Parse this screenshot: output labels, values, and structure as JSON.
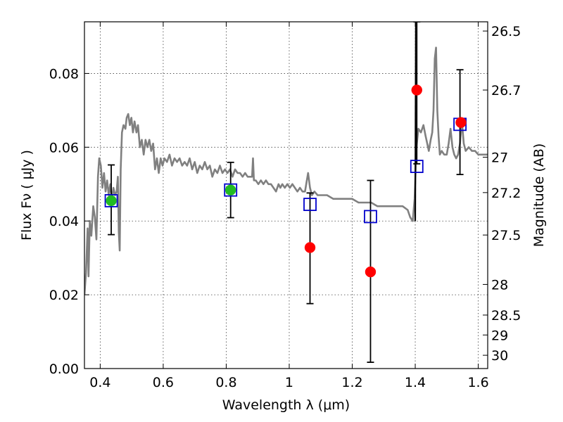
{
  "chart_data": {
    "type": "scatter",
    "xlabel": "Wavelength  λ (μm)",
    "ylabel": "Flux  Fν  ( μJy )",
    "y2label": "Magnitude (AB)",
    "xlim": [
      0.35,
      1.63
    ],
    "ylim": [
      0.0,
      0.094
    ],
    "grid": true,
    "x_ticks": [
      0.4,
      0.6,
      0.8,
      1.0,
      1.2,
      1.4,
      1.6
    ],
    "x_tick_labels": [
      "0.4",
      "0.6",
      "0.8",
      "1",
      "1.2",
      "1.4",
      "1.6"
    ],
    "y_ticks": [
      0.0,
      0.02,
      0.04,
      0.06,
      0.08
    ],
    "y_tick_labels": [
      "0.00",
      "0.02",
      "0.04",
      "0.06",
      "0.08"
    ],
    "y2_ticks": [
      {
        "label": "26.5",
        "flux": 0.0915
      },
      {
        "label": "26.7",
        "flux": 0.0755
      },
      {
        "label": "27",
        "flux": 0.0573
      },
      {
        "label": "27.2",
        "flux": 0.0477
      },
      {
        "label": "27.5",
        "flux": 0.0362
      },
      {
        "label": "28",
        "flux": 0.0228
      },
      {
        "label": "28.5",
        "flux": 0.0145
      },
      {
        "label": "29",
        "flux": 0.0091
      },
      {
        "label": "30",
        "flux": 0.0036
      }
    ],
    "series": [
      {
        "kind": "line",
        "color": "#808080",
        "points": [
          [
            0.35,
            0.02
          ],
          [
            0.355,
            0.026
          ],
          [
            0.36,
            0.038
          ],
          [
            0.363,
            0.025
          ],
          [
            0.367,
            0.04
          ],
          [
            0.372,
            0.036
          ],
          [
            0.378,
            0.044
          ],
          [
            0.383,
            0.041
          ],
          [
            0.388,
            0.035
          ],
          [
            0.393,
            0.052
          ],
          [
            0.397,
            0.057
          ],
          [
            0.402,
            0.055
          ],
          [
            0.407,
            0.049
          ],
          [
            0.412,
            0.053
          ],
          [
            0.417,
            0.048
          ],
          [
            0.422,
            0.051
          ],
          [
            0.427,
            0.047
          ],
          [
            0.432,
            0.05
          ],
          [
            0.437,
            0.046
          ],
          [
            0.442,
            0.049
          ],
          [
            0.447,
            0.047
          ],
          [
            0.452,
            0.048
          ],
          [
            0.456,
            0.052
          ],
          [
            0.459,
            0.037
          ],
          [
            0.462,
            0.032
          ],
          [
            0.465,
            0.054
          ],
          [
            0.469,
            0.064
          ],
          [
            0.474,
            0.066
          ],
          [
            0.48,
            0.065
          ],
          [
            0.484,
            0.068
          ],
          [
            0.489,
            0.069
          ],
          [
            0.494,
            0.066
          ],
          [
            0.499,
            0.068
          ],
          [
            0.504,
            0.064
          ],
          [
            0.509,
            0.067
          ],
          [
            0.515,
            0.064
          ],
          [
            0.52,
            0.066
          ],
          [
            0.526,
            0.06
          ],
          [
            0.532,
            0.062
          ],
          [
            0.538,
            0.058
          ],
          [
            0.544,
            0.062
          ],
          [
            0.55,
            0.06
          ],
          [
            0.556,
            0.062
          ],
          [
            0.562,
            0.059
          ],
          [
            0.568,
            0.061
          ],
          [
            0.574,
            0.054
          ],
          [
            0.58,
            0.057
          ],
          [
            0.586,
            0.053
          ],
          [
            0.592,
            0.057
          ],
          [
            0.598,
            0.055
          ],
          [
            0.604,
            0.057
          ],
          [
            0.612,
            0.056
          ],
          [
            0.62,
            0.058
          ],
          [
            0.628,
            0.055
          ],
          [
            0.636,
            0.057
          ],
          [
            0.644,
            0.056
          ],
          [
            0.652,
            0.057
          ],
          [
            0.66,
            0.055
          ],
          [
            0.668,
            0.056
          ],
          [
            0.676,
            0.055
          ],
          [
            0.684,
            0.057
          ],
          [
            0.692,
            0.054
          ],
          [
            0.7,
            0.056
          ],
          [
            0.708,
            0.053
          ],
          [
            0.716,
            0.055
          ],
          [
            0.724,
            0.054
          ],
          [
            0.732,
            0.056
          ],
          [
            0.74,
            0.054
          ],
          [
            0.748,
            0.055
          ],
          [
            0.756,
            0.052
          ],
          [
            0.764,
            0.054
          ],
          [
            0.772,
            0.053
          ],
          [
            0.78,
            0.055
          ],
          [
            0.788,
            0.053
          ],
          [
            0.796,
            0.054
          ],
          [
            0.804,
            0.053
          ],
          [
            0.812,
            0.054
          ],
          [
            0.82,
            0.052
          ],
          [
            0.828,
            0.054
          ],
          [
            0.836,
            0.053
          ],
          [
            0.844,
            0.053
          ],
          [
            0.852,
            0.052
          ],
          [
            0.86,
            0.053
          ],
          [
            0.868,
            0.052
          ],
          [
            0.876,
            0.052
          ],
          [
            0.882,
            0.052
          ],
          [
            0.885,
            0.057
          ],
          [
            0.888,
            0.051
          ],
          [
            0.894,
            0.051
          ],
          [
            0.902,
            0.05
          ],
          [
            0.91,
            0.051
          ],
          [
            0.918,
            0.05
          ],
          [
            0.926,
            0.051
          ],
          [
            0.934,
            0.05
          ],
          [
            0.942,
            0.05
          ],
          [
            0.95,
            0.049
          ],
          [
            0.958,
            0.048
          ],
          [
            0.966,
            0.05
          ],
          [
            0.972,
            0.049
          ],
          [
            0.978,
            0.05
          ],
          [
            0.986,
            0.049
          ],
          [
            0.994,
            0.05
          ],
          [
            1.002,
            0.049
          ],
          [
            1.01,
            0.05
          ],
          [
            1.018,
            0.049
          ],
          [
            1.026,
            0.048
          ],
          [
            1.034,
            0.049
          ],
          [
            1.042,
            0.048
          ],
          [
            1.05,
            0.048
          ],
          [
            1.056,
            0.051
          ],
          [
            1.06,
            0.053
          ],
          [
            1.066,
            0.049
          ],
          [
            1.072,
            0.047
          ],
          [
            1.08,
            0.048
          ],
          [
            1.09,
            0.047
          ],
          [
            1.1,
            0.047
          ],
          [
            1.12,
            0.047
          ],
          [
            1.14,
            0.046
          ],
          [
            1.16,
            0.046
          ],
          [
            1.18,
            0.046
          ],
          [
            1.2,
            0.046
          ],
          [
            1.22,
            0.045
          ],
          [
            1.24,
            0.045
          ],
          [
            1.26,
            0.045
          ],
          [
            1.28,
            0.044
          ],
          [
            1.3,
            0.044
          ],
          [
            1.32,
            0.044
          ],
          [
            1.34,
            0.044
          ],
          [
            1.36,
            0.044
          ],
          [
            1.376,
            0.043
          ],
          [
            1.384,
            0.041
          ],
          [
            1.392,
            0.04
          ],
          [
            1.398,
            0.046
          ],
          [
            1.404,
            0.06
          ],
          [
            1.41,
            0.065
          ],
          [
            1.418,
            0.064
          ],
          [
            1.426,
            0.066
          ],
          [
            1.433,
            0.063
          ],
          [
            1.438,
            0.061
          ],
          [
            1.443,
            0.059
          ],
          [
            1.449,
            0.062
          ],
          [
            1.454,
            0.064
          ],
          [
            1.458,
            0.07
          ],
          [
            1.462,
            0.084
          ],
          [
            1.466,
            0.087
          ],
          [
            1.47,
            0.07
          ],
          [
            1.474,
            0.063
          ],
          [
            1.478,
            0.058
          ],
          [
            1.484,
            0.059
          ],
          [
            1.492,
            0.058
          ],
          [
            1.5,
            0.058
          ],
          [
            1.506,
            0.061
          ],
          [
            1.512,
            0.065
          ],
          [
            1.518,
            0.06
          ],
          [
            1.524,
            0.058
          ],
          [
            1.53,
            0.057
          ],
          [
            1.536,
            0.058
          ],
          [
            1.542,
            0.061
          ],
          [
            1.548,
            0.067
          ],
          [
            1.554,
            0.061
          ],
          [
            1.56,
            0.059
          ],
          [
            1.57,
            0.06
          ],
          [
            1.58,
            0.059
          ],
          [
            1.59,
            0.059
          ],
          [
            1.6,
            0.058
          ],
          [
            1.615,
            0.058
          ],
          [
            1.63,
            0.058
          ]
        ]
      },
      {
        "kind": "line",
        "color": "#000000",
        "points": [
          [
            1.4,
            0.04
          ],
          [
            1.402,
            0.094
          ]
        ]
      },
      {
        "kind": "errorbar",
        "color": "#000000",
        "points": [
          {
            "x": 0.435,
            "low": 0.0363,
            "high": 0.0552
          },
          {
            "x": 0.814,
            "low": 0.0409,
            "high": 0.0559
          },
          {
            "x": 1.066,
            "low": 0.0176,
            "high": 0.0476
          },
          {
            "x": 1.258,
            "low": 0.0017,
            "high": 0.051
          },
          {
            "x": 1.405,
            "low": 0.0555,
            "high": 0.094
          },
          {
            "x": 1.542,
            "low": 0.0526,
            "high": 0.081
          }
        ]
      },
      {
        "kind": "open_square",
        "color": "#0000cc",
        "x": [
          0.435,
          0.814,
          1.066,
          1.258,
          1.405,
          1.542
        ],
        "y": [
          0.0455,
          0.0484,
          0.0445,
          0.0412,
          0.0548,
          0.0662
        ]
      },
      {
        "kind": "filled_circle",
        "color": "#ff0000",
        "x": [
          1.066,
          1.258,
          1.405,
          1.545
        ],
        "y": [
          0.0328,
          0.0262,
          0.0755,
          0.0667
        ]
      },
      {
        "kind": "filled_circle",
        "color": "#22bb22",
        "x": [
          0.435,
          0.814
        ],
        "y": [
          0.0455,
          0.0484
        ]
      }
    ]
  }
}
